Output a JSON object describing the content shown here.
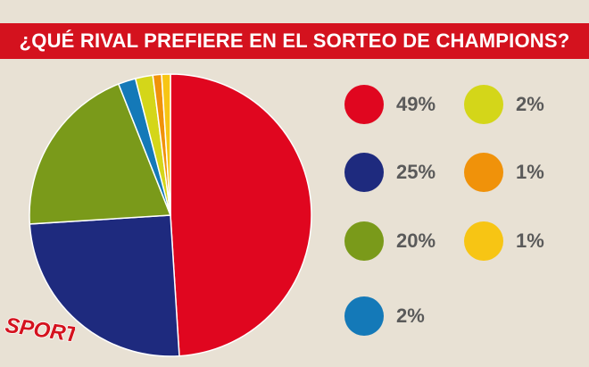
{
  "header": {
    "title": "¿QUÉ RIVAL PREFIERE EN EL SORTEO DE CHAMPIONS?"
  },
  "logo": {
    "text": "SPORT",
    "color": "#d4121e"
  },
  "colors": {
    "title_bar": "#d4121e",
    "background": "#e8e1d4"
  },
  "chart_data": {
    "type": "pie",
    "title": "¿QUÉ RIVAL PREFIERE EN EL SORTEO DE CHAMPIONS?",
    "slices": [
      {
        "label": "49%",
        "value": 49,
        "color": "#e0061f"
      },
      {
        "label": "25%",
        "value": 25,
        "color": "#1e2a7e"
      },
      {
        "label": "20%",
        "value": 20,
        "color": "#7a9a1a"
      },
      {
        "label": "2%",
        "value": 2,
        "color": "#1479b8"
      },
      {
        "label": "2%",
        "value": 2,
        "color": "#d4d619"
      },
      {
        "label": "1%",
        "value": 1,
        "color": "#f0920a"
      },
      {
        "label": "1%",
        "value": 1,
        "color": "#f7c514"
      }
    ],
    "legend": [
      {
        "label": "49%",
        "color": "#e0061f"
      },
      {
        "label": "25%",
        "color": "#1e2a7e"
      },
      {
        "label": "20%",
        "color": "#7a9a1a"
      },
      {
        "label": "2%",
        "color": "#1479b8"
      },
      {
        "label": "2%",
        "color": "#d4d619"
      },
      {
        "label": "1%",
        "color": "#f0920a"
      },
      {
        "label": "1%",
        "color": "#f7c514"
      }
    ],
    "legend_placement": "right"
  }
}
